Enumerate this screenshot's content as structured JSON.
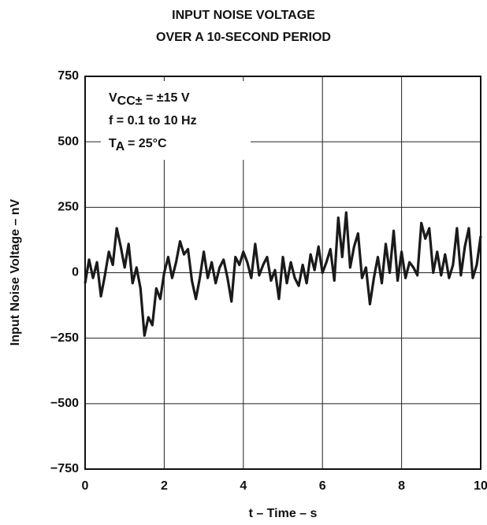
{
  "chart_data": {
    "type": "line",
    "title": [
      "INPUT NOISE VOLTAGE",
      "OVER A 10-SECOND PERIOD"
    ],
    "xlabel": "t – Time – s",
    "ylabel": "Input Noise Voltage – nV",
    "annotations": [
      [
        "V",
        "CC±",
        " = ±15 V"
      ],
      [
        "f = 0.1 to 10 Hz"
      ],
      [
        "T",
        "A",
        " = 25°C"
      ]
    ],
    "xlim": [
      0,
      10
    ],
    "xticks": [
      0,
      2,
      4,
      6,
      8,
      10
    ],
    "ylim": [
      -750,
      750
    ],
    "yticks": [
      {
        "value": -750,
        "label": "−750"
      },
      {
        "value": -500,
        "label": "−500"
      },
      {
        "value": -250,
        "label": "−250"
      },
      0,
      250,
      500,
      750
    ],
    "grid": true,
    "series": [
      {
        "color": "#1a1a1a",
        "x": [
          0,
          0.1,
          0.2,
          0.3,
          0.4,
          0.5,
          0.6,
          0.7,
          0.8,
          0.9,
          1,
          1.1,
          1.2,
          1.3,
          1.4,
          1.5,
          1.6,
          1.7,
          1.8,
          1.9,
          2,
          2.1,
          2.2,
          2.3,
          2.4,
          2.5,
          2.6,
          2.7,
          2.8,
          2.9,
          3,
          3.1,
          3.2,
          3.3,
          3.4,
          3.5,
          3.6,
          3.7,
          3.8,
          3.9,
          4,
          4.1,
          4.2,
          4.3,
          4.4,
          4.5,
          4.6,
          4.7,
          4.8,
          4.9,
          5,
          5.1,
          5.2,
          5.3,
          5.4,
          5.5,
          5.6,
          5.7,
          5.8,
          5.9,
          6,
          6.1,
          6.2,
          6.3,
          6.4,
          6.5,
          6.6,
          6.7,
          6.8,
          6.9,
          7,
          7.1,
          7.2,
          7.3,
          7.4,
          7.5,
          7.6,
          7.7,
          7.8,
          7.9,
          8,
          8.1,
          8.2,
          8.3,
          8.4,
          8.5,
          8.6,
          8.7,
          8.8,
          8.9,
          9,
          9.1,
          9.2,
          9.3,
          9.4,
          9.5,
          9.6,
          9.7,
          9.8,
          9.9,
          10
        ],
        "values": [
          -40,
          50,
          -20,
          40,
          -90,
          -10,
          80,
          30,
          170,
          100,
          20,
          110,
          -40,
          20,
          -60,
          -240,
          -170,
          -200,
          -60,
          -100,
          0,
          60,
          -20,
          40,
          120,
          70,
          90,
          -30,
          -100,
          -20,
          80,
          -20,
          40,
          -40,
          20,
          50,
          -20,
          -110,
          60,
          30,
          80,
          40,
          -20,
          110,
          -10,
          30,
          60,
          -30,
          10,
          -100,
          60,
          -40,
          40,
          -20,
          -50,
          30,
          -40,
          70,
          10,
          100,
          0,
          40,
          90,
          -30,
          210,
          60,
          230,
          20,
          100,
          150,
          -20,
          20,
          -120,
          -20,
          60,
          -40,
          110,
          0,
          160,
          -30,
          80,
          -20,
          40,
          20,
          -10,
          190,
          130,
          170,
          0,
          80,
          -10,
          70,
          -20,
          30,
          170,
          -10,
          100,
          170,
          -20,
          30,
          140
        ]
      }
    ]
  }
}
